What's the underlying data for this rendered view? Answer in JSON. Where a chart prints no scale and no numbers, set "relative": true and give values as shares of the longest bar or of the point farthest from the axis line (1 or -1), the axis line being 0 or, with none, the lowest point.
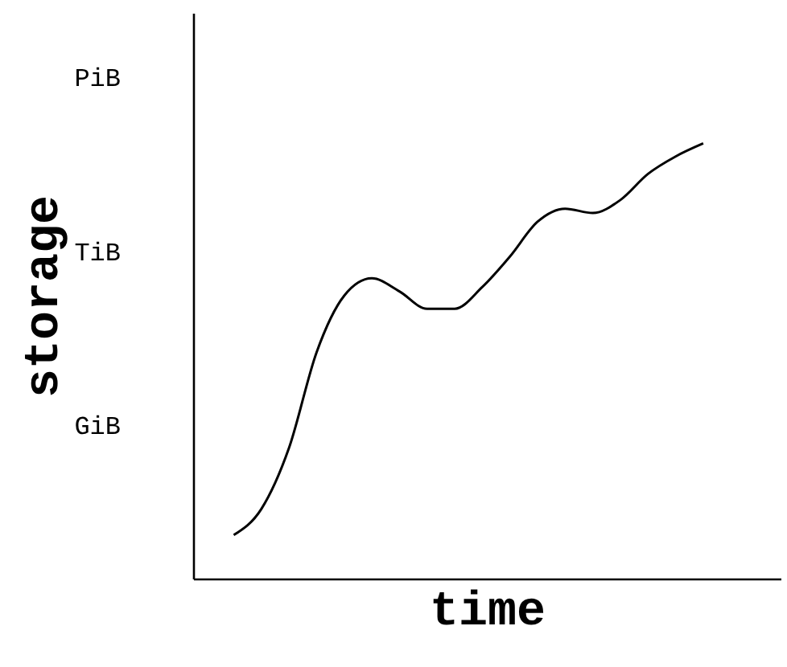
{
  "chart_data": {
    "type": "line",
    "xlabel": "time",
    "ylabel": "storage",
    "relative": true,
    "categories": [
      null,
      null,
      null,
      null,
      null,
      null,
      null,
      null,
      null,
      null,
      null,
      null,
      null,
      null,
      null,
      null,
      null,
      null
    ],
    "series": [
      {
        "color": "#000000",
        "values": [
          0.1,
          0.16,
          0.3,
          0.52,
          0.65,
          0.69,
          0.66,
          0.62,
          0.62,
          0.67,
          0.74,
          0.82,
          0.85,
          0.84,
          0.87,
          0.93,
          0.97,
          1
        ]
      }
    ],
    "annotations": [
      "GiB",
      "TiB",
      "PiB"
    ],
    "legend": false,
    "marker": "none",
    "line_style": "solid"
  }
}
